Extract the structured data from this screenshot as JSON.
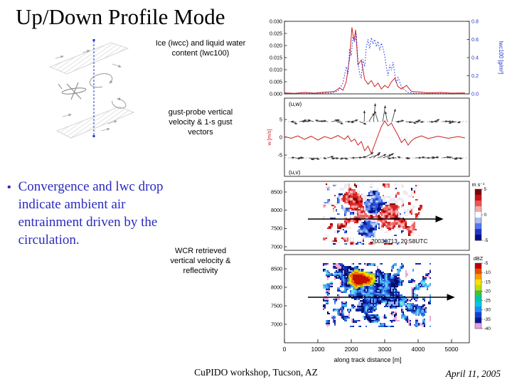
{
  "slide": {
    "title": "Up/Down Profile Mode",
    "bullet_marker": "•",
    "bullet_text": "Convergence and lwc drop indicate ambient air entrainment driven by the circulation.",
    "footer": "CuPIDO workshop, Tucson, AZ",
    "date": "April 11, 2005"
  },
  "labels": {
    "panel1": "Ice (iwcc) and liquid water content (lwc100)",
    "panel2": "gust-probe vertical velocity & 1-s gust vectors",
    "panel34": "WCR retrieved vertical velocity & reflectivity"
  },
  "chart_data": {
    "type": "multi-panel",
    "x": {
      "ticks": [
        0,
        1000,
        2000,
        3000,
        4000,
        5000
      ],
      "label": "along track distance [m]",
      "range_m": [
        0,
        5530
      ]
    },
    "panel1": {
      "type": "line",
      "left_axis": {
        "ticks": [
          "0.030",
          "0.025",
          "0.020",
          "0.015",
          "0.010",
          "0.005",
          "0.000"
        ],
        "range": [
          0,
          0.03
        ]
      },
      "right_axis": {
        "ticks": [
          "0.8",
          "0.6",
          "0.4",
          "0.2",
          "0.0"
        ],
        "label": "lwc100 [g/m³]",
        "range": [
          0,
          0.8
        ],
        "color": "#2233cc"
      },
      "series": [
        {
          "name": "iwc",
          "color": "#cc2222",
          "style": "solid",
          "axis": "left",
          "points": [
            [
              0,
              0.0004
            ],
            [
              300,
              0.0002
            ],
            [
              600,
              0.0006
            ],
            [
              900,
              0.0003
            ],
            [
              1200,
              0.0007
            ],
            [
              1500,
              0.001
            ],
            [
              1650,
              0.0025
            ],
            [
              1750,
              0.0015
            ],
            [
              1850,
              0.005
            ],
            [
              1950,
              0.015
            ],
            [
              2020,
              0.0275
            ],
            [
              2080,
              0.022
            ],
            [
              2130,
              0.0265
            ],
            [
              2200,
              0.012
            ],
            [
              2300,
              0.014
            ],
            [
              2400,
              0.006
            ],
            [
              2500,
              0.004
            ],
            [
              2600,
              0.0055
            ],
            [
              2700,
              0.003
            ],
            [
              2800,
              0.0045
            ],
            [
              2900,
              0.002
            ],
            [
              3000,
              0.0035
            ],
            [
              3100,
              0.0025
            ],
            [
              3200,
              0.005
            ],
            [
              3300,
              0.0065
            ],
            [
              3400,
              0.003
            ],
            [
              3500,
              0.002
            ],
            [
              3650,
              0.0035
            ],
            [
              3800,
              0.001
            ],
            [
              4000,
              0.0008
            ],
            [
              4300,
              0.0004
            ],
            [
              4700,
              0.0006
            ],
            [
              5000,
              0.0003
            ],
            [
              5400,
              0.0004
            ]
          ]
        },
        {
          "name": "lwc100",
          "color": "#2233dd",
          "style": "dotted",
          "axis": "right",
          "points": [
            [
              0,
              0.005
            ],
            [
              500,
              0.004
            ],
            [
              1000,
              0.006
            ],
            [
              1400,
              0.01
            ],
            [
              1600,
              0.03
            ],
            [
              1750,
              0.12
            ],
            [
              1850,
              0.3
            ],
            [
              1900,
              0.22
            ],
            [
              1950,
              0.5
            ],
            [
              2000,
              0.42
            ],
            [
              2050,
              0.63
            ],
            [
              2100,
              0.58
            ],
            [
              2150,
              0.66
            ],
            [
              2200,
              0.35
            ],
            [
              2250,
              0.22
            ],
            [
              2300,
              0.18
            ],
            [
              2350,
              0.38
            ],
            [
              2400,
              0.3
            ],
            [
              2450,
              0.52
            ],
            [
              2500,
              0.6
            ],
            [
              2550,
              0.5
            ],
            [
              2600,
              0.62
            ],
            [
              2650,
              0.55
            ],
            [
              2700,
              0.6
            ],
            [
              2750,
              0.52
            ],
            [
              2800,
              0.58
            ],
            [
              2850,
              0.48
            ],
            [
              2900,
              0.56
            ],
            [
              2950,
              0.5
            ],
            [
              3000,
              0.42
            ],
            [
              3050,
              0.3
            ],
            [
              3100,
              0.2
            ],
            [
              3150,
              0.32
            ],
            [
              3200,
              0.26
            ],
            [
              3250,
              0.35
            ],
            [
              3300,
              0.22
            ],
            [
              3350,
              0.12
            ],
            [
              3400,
              0.18
            ],
            [
              3500,
              0.08
            ],
            [
              3600,
              0.04
            ],
            [
              3700,
              0.015
            ],
            [
              3900,
              0.006
            ],
            [
              4200,
              0.004
            ],
            [
              4600,
              0.005
            ],
            [
              5000,
              0.003
            ],
            [
              5400,
              0.004
            ]
          ]
        }
      ]
    },
    "panel2": {
      "type": "line+vectors",
      "y_ticks": [
        "5",
        "0",
        "-5"
      ],
      "y_label": "w [m/s]",
      "y_label_color": "#cc2222",
      "row_labels": [
        "(u,w)",
        "(u,v)"
      ],
      "w_series": {
        "color": "#cc2222",
        "points": [
          [
            0,
            0.2
          ],
          [
            200,
            -0.3
          ],
          [
            400,
            0.4
          ],
          [
            600,
            -0.6
          ],
          [
            800,
            0.3
          ],
          [
            1000,
            -0.8
          ],
          [
            1200,
            0.2
          ],
          [
            1400,
            -0.4
          ],
          [
            1600,
            0.5
          ],
          [
            1800,
            -0.6
          ],
          [
            1900,
            0.4
          ],
          [
            2000,
            -1.2
          ],
          [
            2100,
            -0.5
          ],
          [
            2200,
            -2.2
          ],
          [
            2300,
            -1.2
          ],
          [
            2400,
            -3.8
          ],
          [
            2500,
            -2.5
          ],
          [
            2600,
            -4.6
          ],
          [
            2700,
            -2
          ],
          [
            2800,
            0.5
          ],
          [
            2900,
            3
          ],
          [
            3000,
            4.6
          ],
          [
            3100,
            3.2
          ],
          [
            3200,
            4
          ],
          [
            3300,
            2.2
          ],
          [
            3400,
            0.5
          ],
          [
            3500,
            -1.5
          ],
          [
            3600,
            -0.5
          ],
          [
            3700,
            -2.2
          ],
          [
            3800,
            -1
          ],
          [
            3900,
            -0.3
          ],
          [
            4100,
            0.4
          ],
          [
            4300,
            -0.4
          ],
          [
            4600,
            0.3
          ],
          [
            4900,
            -0.3
          ],
          [
            5200,
            0.2
          ],
          [
            5400,
            -0.2
          ]
        ]
      }
    },
    "panel3": {
      "type": "radar-image",
      "y_ticks": [
        "8500",
        "8000",
        "7500",
        "7000"
      ],
      "annotation": "20030713, 20:58UTC",
      "colorbar": {
        "label": "m s⁻¹",
        "ticks": [
          "5",
          "0",
          "-5"
        ],
        "colors": [
          "#7f0000",
          "#cc1111",
          "#ee5555",
          "#f5aaaa",
          "#ffffff",
          "#aabbf5",
          "#5577ee",
          "#2233cc",
          "#001080"
        ]
      }
    },
    "panel4": {
      "type": "radar-image",
      "y_ticks": [
        "8500",
        "8000",
        "7500",
        "7000"
      ],
      "colorbar": {
        "label": "dBZ",
        "ticks": [
          "-5",
          "-10",
          "-15",
          "-20",
          "-25",
          "-30",
          "-35",
          "-40"
        ],
        "colors": [
          "#c00000",
          "#e85000",
          "#f9a000",
          "#ffe000",
          "#bfe000",
          "#40c040",
          "#00c8a0",
          "#00c8e8",
          "#2288ff",
          "#1040d0",
          "#081890",
          "#e8a0e0"
        ]
      }
    }
  }
}
